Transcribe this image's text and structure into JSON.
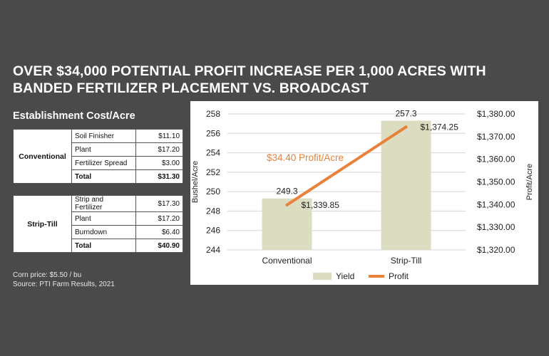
{
  "headline": {
    "line1": "OVER $34,000 POTENTIAL PROFIT INCREASE PER 1,000 ACRES WITH",
    "line2": "BANDED FERTILIZER PLACEMENT VS. BROADCAST"
  },
  "cost_table": {
    "title": "Establishment Cost/Acre",
    "groups": [
      {
        "name": "Conventional",
        "rows": [
          {
            "item": "Soil Finisher",
            "value": "$11.10"
          },
          {
            "item": "Plant",
            "value": "$17.20"
          },
          {
            "item": "Fertilizer Spread",
            "value": "$3.00"
          }
        ],
        "total_label": "Total",
        "total_value": "$31.30"
      },
      {
        "name": "Strip-Till",
        "rows": [
          {
            "item": "Strip and Fertilizer",
            "value": "$17.30"
          },
          {
            "item": "Plant",
            "value": "$17.20"
          },
          {
            "item": "Burndown",
            "value": "$6.40"
          }
        ],
        "total_label": "Total",
        "total_value": "$40.90"
      }
    ]
  },
  "footnote": {
    "line1": "Corn price: $5.50 / bu",
    "line2": "Source: PTI Farm Results, 2021"
  },
  "colors": {
    "background": "#4a4a4a",
    "bar": "#dcdcc0",
    "line": "#e8823a",
    "annotation": "#e8823a"
  },
  "chart_data": {
    "type": "bar",
    "categories": [
      "Conventional",
      "Strip-Till"
    ],
    "series": [
      {
        "name": "Yield",
        "type": "bar",
        "axis": "left",
        "values": [
          249.3,
          257.3
        ],
        "labels": [
          "249.3",
          "257.3"
        ]
      },
      {
        "name": "Profit",
        "type": "line",
        "axis": "right",
        "values": [
          1339.85,
          1374.25
        ],
        "labels": [
          "$1,339.85",
          "$1,374.25"
        ]
      }
    ],
    "ylabel": "Bushel/Acre",
    "ylim": [
      244,
      258
    ],
    "yticks": [
      "244",
      "246",
      "248",
      "250",
      "252",
      "254",
      "256",
      "258"
    ],
    "y2label": "Profit/Acre",
    "y2lim": [
      1320,
      1380
    ],
    "y2ticks": [
      "$1,320.00",
      "$1,330.00",
      "$1,340.00",
      "$1,350.00",
      "$1,360.00",
      "$1,370.00",
      "$1,380.00"
    ],
    "annotation": "$34.40 Profit/Acre",
    "legend_position": "bottom"
  }
}
